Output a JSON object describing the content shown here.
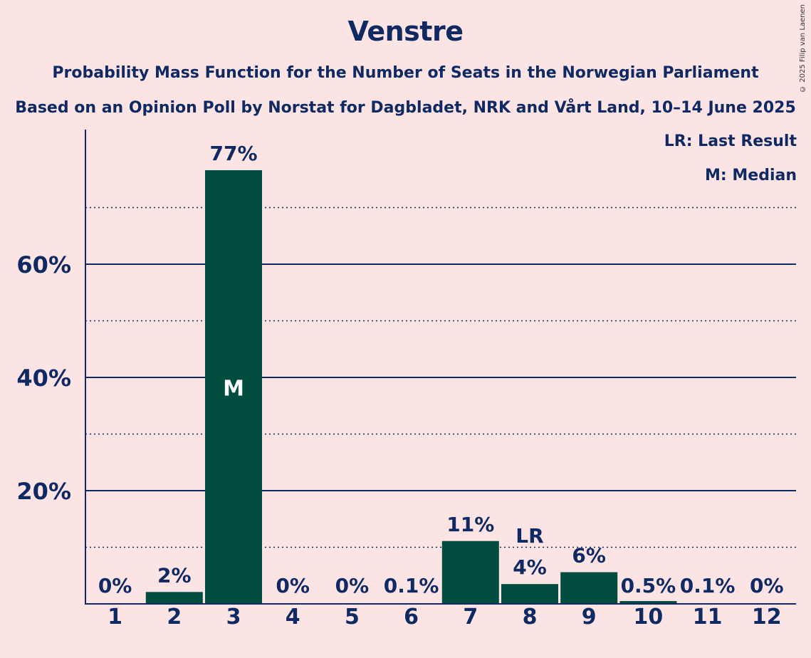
{
  "header": {
    "title": "Venstre",
    "subtitle_1": "Probability Mass Function for the Number of Seats in the Norwegian Parliament",
    "subtitle_2": "Based on an Opinion Poll by Norstat for Dagbladet, NRK and Vårt Land, 10–14 June 2025"
  },
  "copyright": "© 2025 Filip van Laenen",
  "legend": {
    "last_result": "LR: Last Result",
    "median": "M: Median"
  },
  "colors": {
    "background": "#fde4e4",
    "bar": "#004d40",
    "text": "#0f2a63"
  },
  "chart_data": {
    "type": "bar",
    "categories": [
      "1",
      "2",
      "3",
      "4",
      "5",
      "6",
      "7",
      "8",
      "9",
      "10",
      "11",
      "12"
    ],
    "values": [
      0,
      2.1,
      76.6,
      0,
      0,
      0.1,
      11.1,
      3.5,
      5.6,
      0.5,
      0.1,
      0
    ],
    "value_labels": [
      "0%",
      "2%",
      "77%",
      "0%",
      "0%",
      "0.1%",
      "11%",
      "4%",
      "6%",
      "0.5%",
      "0.1%",
      "0%"
    ],
    "ylim": [
      0,
      83
    ],
    "yticks_major": [
      20,
      40,
      60
    ],
    "ytick_labels": [
      "20%",
      "40%",
      "60%"
    ],
    "yticks_minor": [
      10,
      30,
      50,
      70
    ],
    "median_category": "3",
    "median_marker": "M",
    "last_result_category": "8",
    "last_result_marker": "LR",
    "xlabel": "",
    "ylabel": "",
    "grid": true,
    "legend_position": "top-right"
  }
}
